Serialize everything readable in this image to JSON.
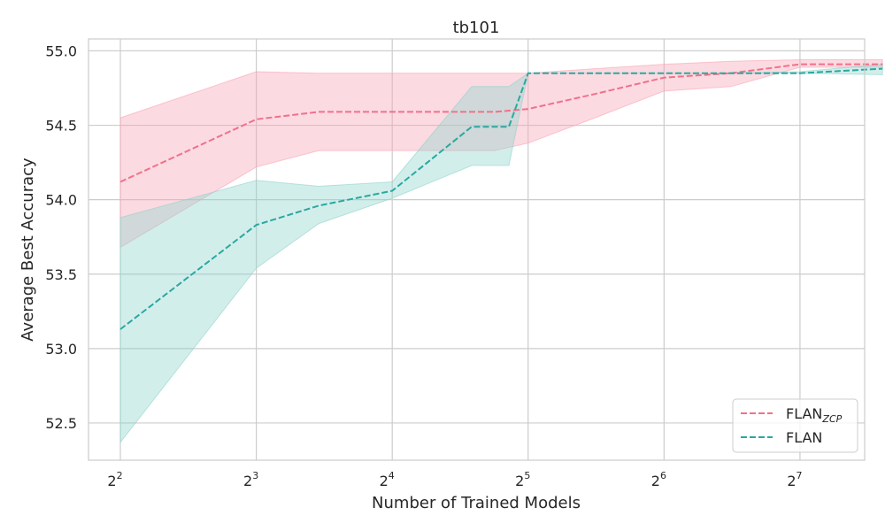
{
  "chart_data": {
    "type": "line",
    "title": "tb101",
    "xlabel": "Number of Trained Models",
    "ylabel": "Average Best Accuracy",
    "x_scale": "log2",
    "xlim": [
      3.4,
      178
    ],
    "ylim": [
      52.25,
      55.08
    ],
    "x_ticks": [
      {
        "value": 4,
        "base": "2",
        "exp": "2"
      },
      {
        "value": 8,
        "base": "2",
        "exp": "3"
      },
      {
        "value": 16,
        "base": "2",
        "exp": "4"
      },
      {
        "value": 32,
        "base": "2",
        "exp": "5"
      },
      {
        "value": 64,
        "base": "2",
        "exp": "6"
      },
      {
        "value": 128,
        "base": "2",
        "exp": "7"
      }
    ],
    "y_ticks": [
      {
        "value": 52.5,
        "label": "52.5"
      },
      {
        "value": 53.0,
        "label": "53.0"
      },
      {
        "value": 53.5,
        "label": "53.5"
      },
      {
        "value": 54.0,
        "label": "54.0"
      },
      {
        "value": 54.5,
        "label": "54.5"
      },
      {
        "value": 55.0,
        "label": "55.0"
      }
    ],
    "grid": true,
    "legend_position": "lower-right",
    "series": [
      {
        "name": "FLAN",
        "name_sub": "ZCP",
        "color": "#f0718a",
        "band_color": "#f8a3b5",
        "x": [
          4,
          8,
          11,
          16,
          24,
          27,
          32,
          45,
          64,
          90,
          128,
          195
        ],
        "y": [
          54.12,
          54.54,
          54.59,
          54.59,
          54.59,
          54.59,
          54.61,
          54.71,
          54.82,
          54.85,
          54.91,
          54.91
        ],
        "lower": [
          53.68,
          54.22,
          54.33,
          54.33,
          54.33,
          54.33,
          54.38,
          54.55,
          54.73,
          54.76,
          54.89,
          54.89
        ],
        "upper": [
          54.55,
          54.86,
          54.85,
          54.85,
          54.85,
          54.85,
          54.85,
          54.88,
          54.91,
          54.93,
          54.94,
          54.94
        ]
      },
      {
        "name": "FLAN",
        "name_sub": "",
        "color": "#2aa8a0",
        "band_color": "#8fd4cc",
        "x": [
          4,
          8,
          11,
          16,
          24,
          29,
          32,
          64,
          90,
          128,
          195
        ],
        "y": [
          53.13,
          53.83,
          53.96,
          54.06,
          54.49,
          54.49,
          54.85,
          54.85,
          54.85,
          54.85,
          54.88
        ],
        "lower": [
          52.37,
          53.54,
          53.84,
          54.01,
          54.23,
          54.23,
          54.85,
          54.85,
          54.85,
          54.85,
          54.84
        ],
        "upper": [
          53.88,
          54.13,
          54.09,
          54.12,
          54.76,
          54.76,
          54.85,
          54.85,
          54.85,
          54.86,
          54.91
        ]
      }
    ]
  }
}
